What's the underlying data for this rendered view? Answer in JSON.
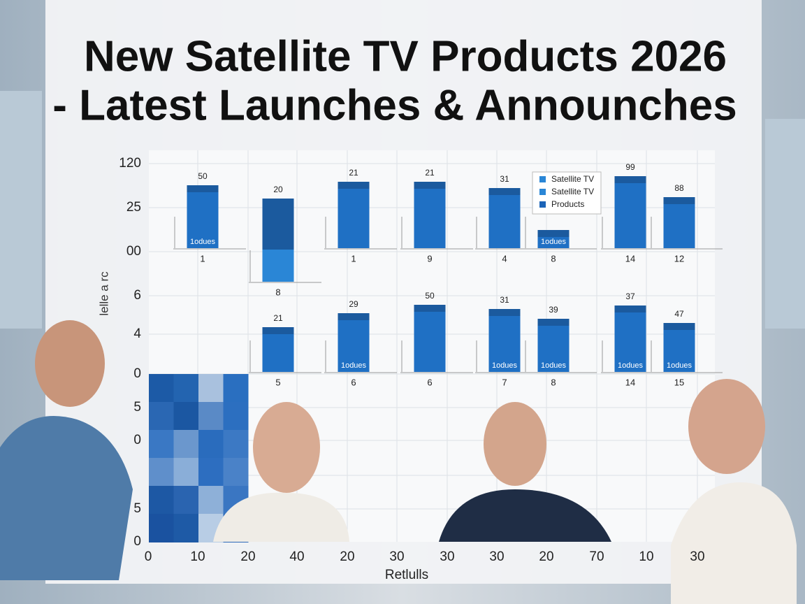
{
  "title": {
    "lines": [
      "New Satellite TV Products 2026",
      "- Latest Launches & Announches"
    ]
  },
  "chart": {
    "y_axis_label": "lelle a rc",
    "y_labels": [
      "120",
      "25",
      "00",
      "6",
      "4",
      "0",
      "5",
      "0",
      "5",
      "0"
    ],
    "x_labels": [
      "0",
      "10",
      "20",
      "40",
      "20",
      "30",
      "30",
      "30",
      "20",
      "70",
      "10",
      "30"
    ],
    "x_axis_label": "Retlulls",
    "legend": [
      "Satellite TV",
      "Satellite TV",
      "Products"
    ],
    "rows": [
      {
        "bars": [
          {
            "label": "50",
            "inner": "1odues",
            "category": "1"
          },
          {
            "label": "20",
            "category": "8"
          },
          {
            "label": "21",
            "category": "1"
          },
          {
            "label": "21",
            "category": "9"
          },
          {
            "label": "31",
            "category": "4"
          },
          {
            "inner": "1odues",
            "category": "8"
          },
          {
            "label": "99",
            "category": "14"
          },
          {
            "label": "88",
            "category": "12"
          }
        ]
      },
      {
        "bars": [
          {
            "label": "21",
            "category": "5"
          },
          {
            "label": "29",
            "inner": "1odues",
            "category": "6"
          },
          {
            "label": "50",
            "category": "6"
          },
          {
            "label": "31",
            "inner": "1odues",
            "category": "7"
          },
          {
            "label": "39",
            "inner": "1odues",
            "category": "8"
          },
          {
            "label": "37",
            "inner": "1odues",
            "category": "14"
          },
          {
            "label": "47",
            "inner": "1odues",
            "category": "15"
          }
        ]
      }
    ]
  }
}
